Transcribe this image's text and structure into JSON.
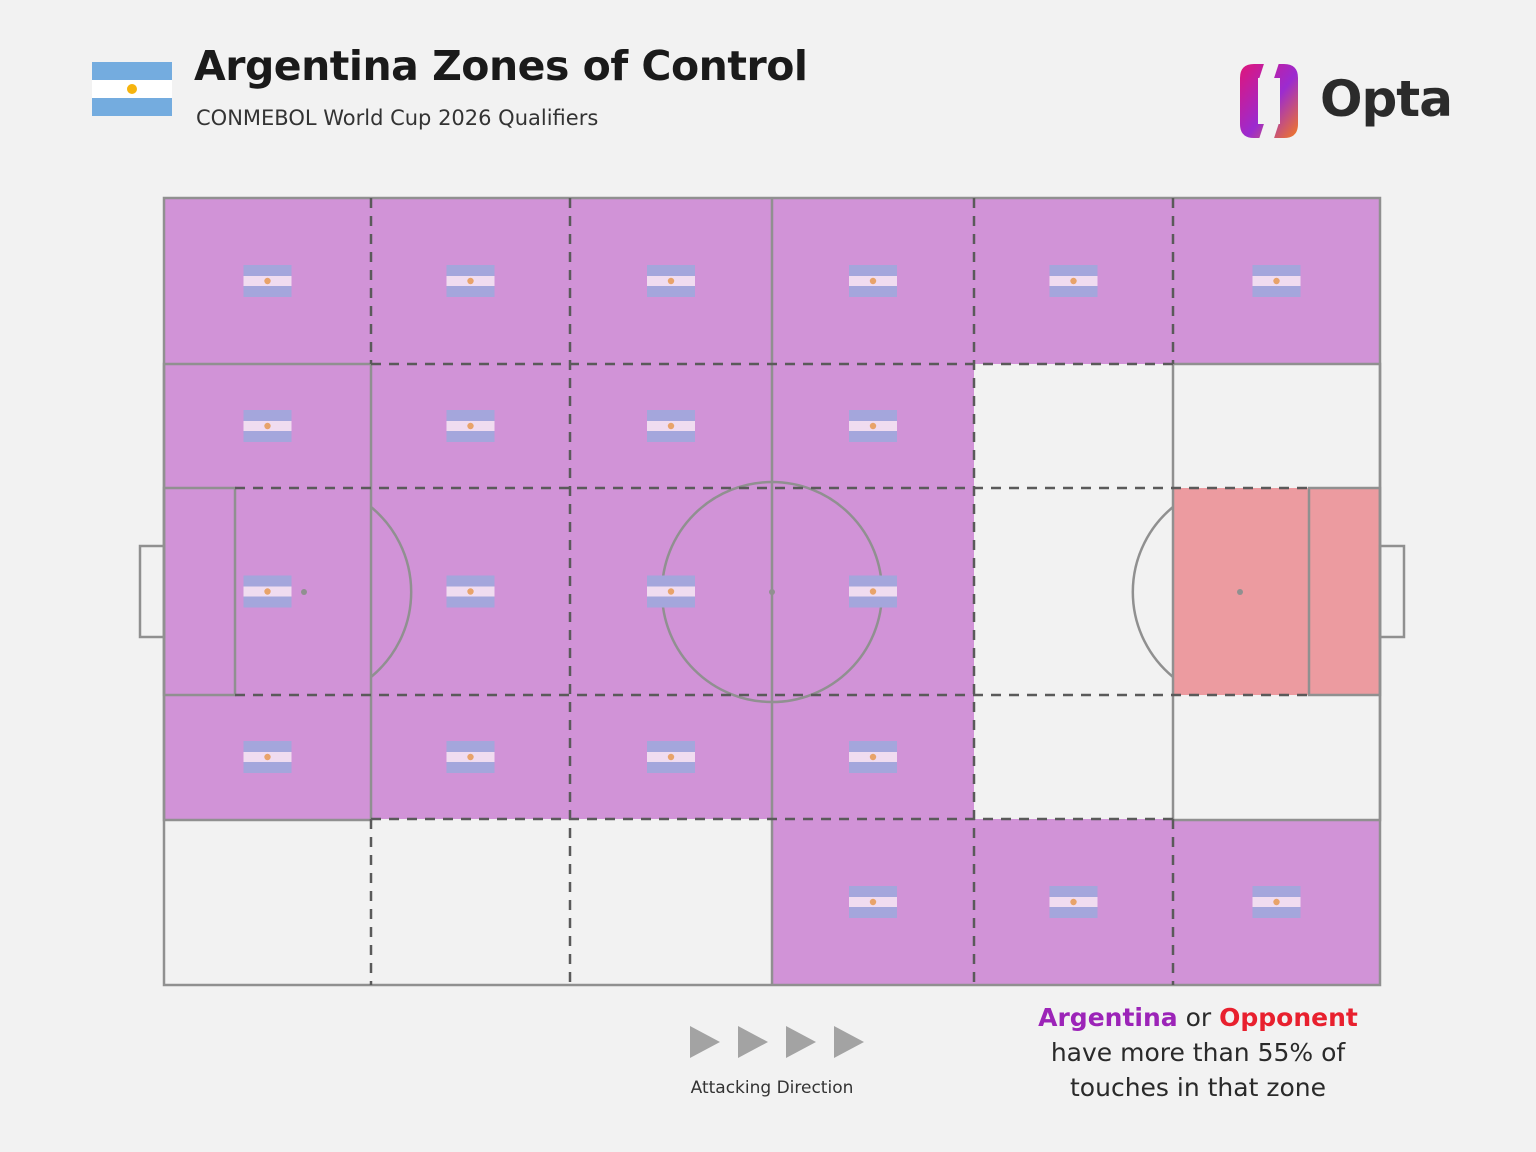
{
  "header": {
    "title": "Argentina Zones of Control",
    "subtitle": "CONMEBOL World Cup 2026 Qualifiers",
    "flag_icon": "argentina-flag-icon"
  },
  "brand": {
    "name": "Opta",
    "logo_icon": "opta-logo-icon"
  },
  "colors": {
    "argentina_zone": "#d193d7",
    "opponent_zone": "#ec9ba0",
    "neutral_zone": "#f2f2f2",
    "argentina_text": "#9c24b8",
    "opponent_text": "#e8202e",
    "flag_blue": "#a4a6dc",
    "flag_white": "#f0dcf0",
    "sun": "#e8a36a"
  },
  "direction": {
    "label": "Attacking Direction",
    "arrow_icon": "play-arrow-icon"
  },
  "legend": {
    "team": "Argentina",
    "or": "or",
    "opponent": "Opponent",
    "line2": "have more than 55% of",
    "line3": "touches in that zone"
  },
  "chart_data": {
    "type": "heatmap",
    "title": "Argentina Zones of Control",
    "subtitle": "CONMEBOL World Cup 2026 Qualifiers",
    "threshold": "55% of touches",
    "attacking_direction": "left-to-right",
    "rows": 5,
    "cols": 6,
    "values_legend": {
      "A": "Argentina",
      "O": "Opponent",
      "-": "Neither"
    },
    "grid": [
      [
        "A",
        "A",
        "A",
        "A",
        "A",
        "A"
      ],
      [
        "A",
        "A",
        "A",
        "A",
        "-",
        "-"
      ],
      [
        "A",
        "A",
        "A",
        "A",
        "-",
        "O"
      ],
      [
        "A",
        "A",
        "A",
        "A",
        "-",
        "-"
      ],
      [
        "-",
        "-",
        "-",
        "A",
        "A",
        "A"
      ]
    ]
  }
}
